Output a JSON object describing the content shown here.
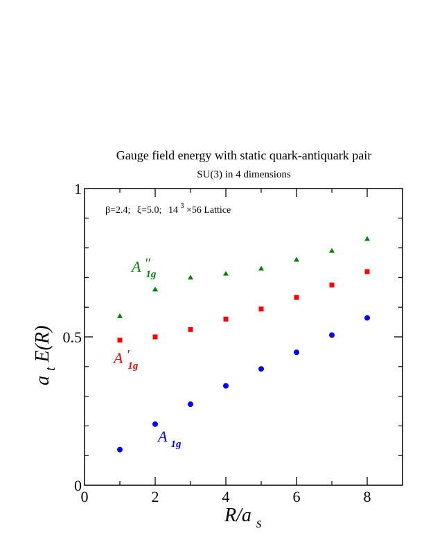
{
  "chart_data": {
    "type": "scatter",
    "title": "Gauge field energy with static quark-antiquark pair",
    "subtitle": "SU(3) in 4 dimensions",
    "annotation": {
      "beta": "β=2.4;",
      "xi": "ξ=5.0;",
      "lattice_base": "14",
      "lattice_exp": "3",
      "lattice_rest": "×56 Lattice"
    },
    "xlabel": {
      "main": "R/a",
      "sub": "s"
    },
    "ylabel": {
      "prefix": "a",
      "sub": "t",
      "main": "E(R)"
    },
    "xlim": [
      0,
      9
    ],
    "ylim": [
      0,
      1
    ],
    "x_ticks": [
      "0",
      "2",
      "4",
      "6",
      "8"
    ],
    "y_ticks": [
      "0",
      "0.5",
      "1"
    ],
    "grid": false,
    "series": [
      {
        "label_main": "A",
        "label_sub": "1g",
        "label_prime": "",
        "color": "#0000ff",
        "marker": "circle",
        "x": [
          1,
          2,
          3,
          4,
          5,
          6,
          7,
          8
        ],
        "y": [
          0.12,
          0.206,
          0.273,
          0.335,
          0.392,
          0.448,
          0.506,
          0.564
        ]
      },
      {
        "label_main": "A",
        "label_sub": "1g",
        "label_prime": "′",
        "color": "#ff0000",
        "marker": "square",
        "x": [
          1,
          2,
          3,
          4,
          5,
          6,
          7,
          8
        ],
        "y": [
          0.489,
          0.5,
          0.525,
          0.56,
          0.594,
          0.633,
          0.675,
          0.72
        ]
      },
      {
        "label_main": "A",
        "label_sub": "1g",
        "label_prime": "″",
        "color": "#008000",
        "marker": "triangle",
        "x": [
          1,
          2,
          3,
          4,
          5,
          6,
          7,
          8
        ],
        "y": [
          0.57,
          0.66,
          0.7,
          0.713,
          0.73,
          0.76,
          0.79,
          0.83
        ]
      }
    ]
  }
}
